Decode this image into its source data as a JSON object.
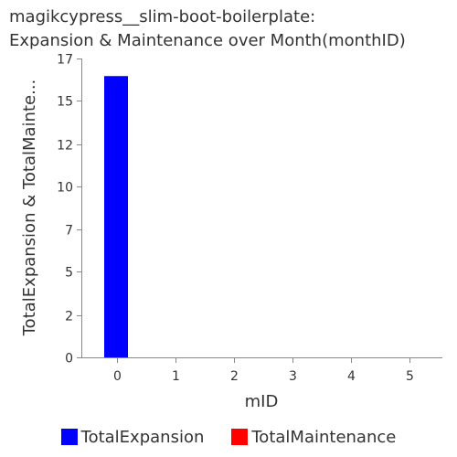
{
  "title_lines": [
    "magikcypress__slim-boot-boilerplate:",
    "Expansion & Maintenance over Month(monthID)"
  ],
  "chart_data": {
    "type": "bar",
    "title": "magikcypress__slim-boot-boilerplate: Expansion & Maintenance over Month(monthID)",
    "xlabel": "mID",
    "ylabel": "TotalExpansion & TotalMainte...",
    "categories": [
      0,
      1,
      2,
      3,
      4,
      5
    ],
    "x_ticks": [
      "0",
      "1",
      "2",
      "3",
      "4",
      "5"
    ],
    "y_ticks": [
      "0",
      "2",
      "5",
      "7",
      "10",
      "12",
      "15",
      "17"
    ],
    "y_tick_values": [
      0,
      2.4,
      4.9,
      7.3,
      9.7,
      12.1,
      14.6,
      17
    ],
    "ylim": [
      0,
      17
    ],
    "series": [
      {
        "name": "TotalExpansion",
        "color": "#0000ff",
        "values": [
          16,
          0,
          0,
          0,
          0,
          0
        ]
      },
      {
        "name": "TotalMaintenance",
        "color": "#ff0000",
        "values": [
          0,
          0,
          0,
          0,
          0,
          0
        ]
      }
    ],
    "legend_position": "bottom",
    "grid": false
  }
}
